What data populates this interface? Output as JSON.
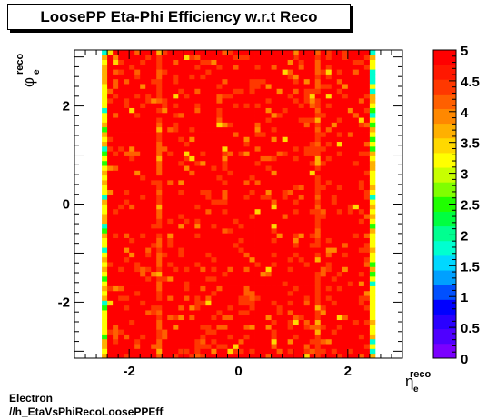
{
  "title": "LoosePP Eta-Phi Efficiency w.r.t Reco",
  "footer": {
    "line1": "Electron",
    "line2": "//h_EtaVsPhiRecoLoosePPEff"
  },
  "chart_data": {
    "type": "heatmap",
    "title": "LoosePP Eta-Phi Efficiency w.r.t Reco",
    "xlabel": {
      "main": "η",
      "sub": "e",
      "sup": "reco"
    },
    "ylabel": {
      "main": "φ",
      "sub": "e",
      "sup": "reco"
    },
    "xlim": [
      -3.0,
      3.0
    ],
    "ylim": [
      -3.1416,
      3.1416
    ],
    "zlim": [
      0,
      5
    ],
    "x_ticks": [
      "-2",
      "0",
      "2"
    ],
    "x_tick_values": [
      -2,
      0,
      2
    ],
    "y_ticks": [
      "-2",
      "0",
      "2"
    ],
    "y_tick_values": [
      -2,
      0,
      2
    ],
    "z_ticks": [
      "0",
      "0.5",
      "1",
      "1.5",
      "2",
      "2.5",
      "3",
      "3.5",
      "4",
      "4.5",
      "5"
    ],
    "z_tick_values": [
      0,
      0.5,
      1,
      1.5,
      2,
      2.5,
      3,
      3.5,
      4,
      4.5,
      5
    ],
    "x_range": [
      -2.5,
      2.5
    ],
    "n_eta_bins": 50,
    "n_phi_bins": 64,
    "typical_value": 4.8,
    "edge_columns": [
      {
        "eta_center": -2.45,
        "value": 3.3
      },
      {
        "eta_center": 2.45,
        "value": 3.3
      }
    ],
    "crack_columns": [
      {
        "eta_center": -1.45,
        "value": 4.3
      },
      {
        "eta_center": 1.45,
        "value": 4.4
      }
    ],
    "colorscale": [
      "#7b00ff",
      "#4f00ff",
      "#2a00ff",
      "#0000ff",
      "#0050ff",
      "#00a0ff",
      "#00d8ff",
      "#00ffd0",
      "#00ff90",
      "#00ff40",
      "#20ff00",
      "#80ff00",
      "#c8ff00",
      "#ffff00",
      "#ffd800",
      "#ffb000",
      "#ff8800",
      "#ff6000",
      "#ff3800",
      "#ff1800",
      "#ff0000"
    ]
  }
}
